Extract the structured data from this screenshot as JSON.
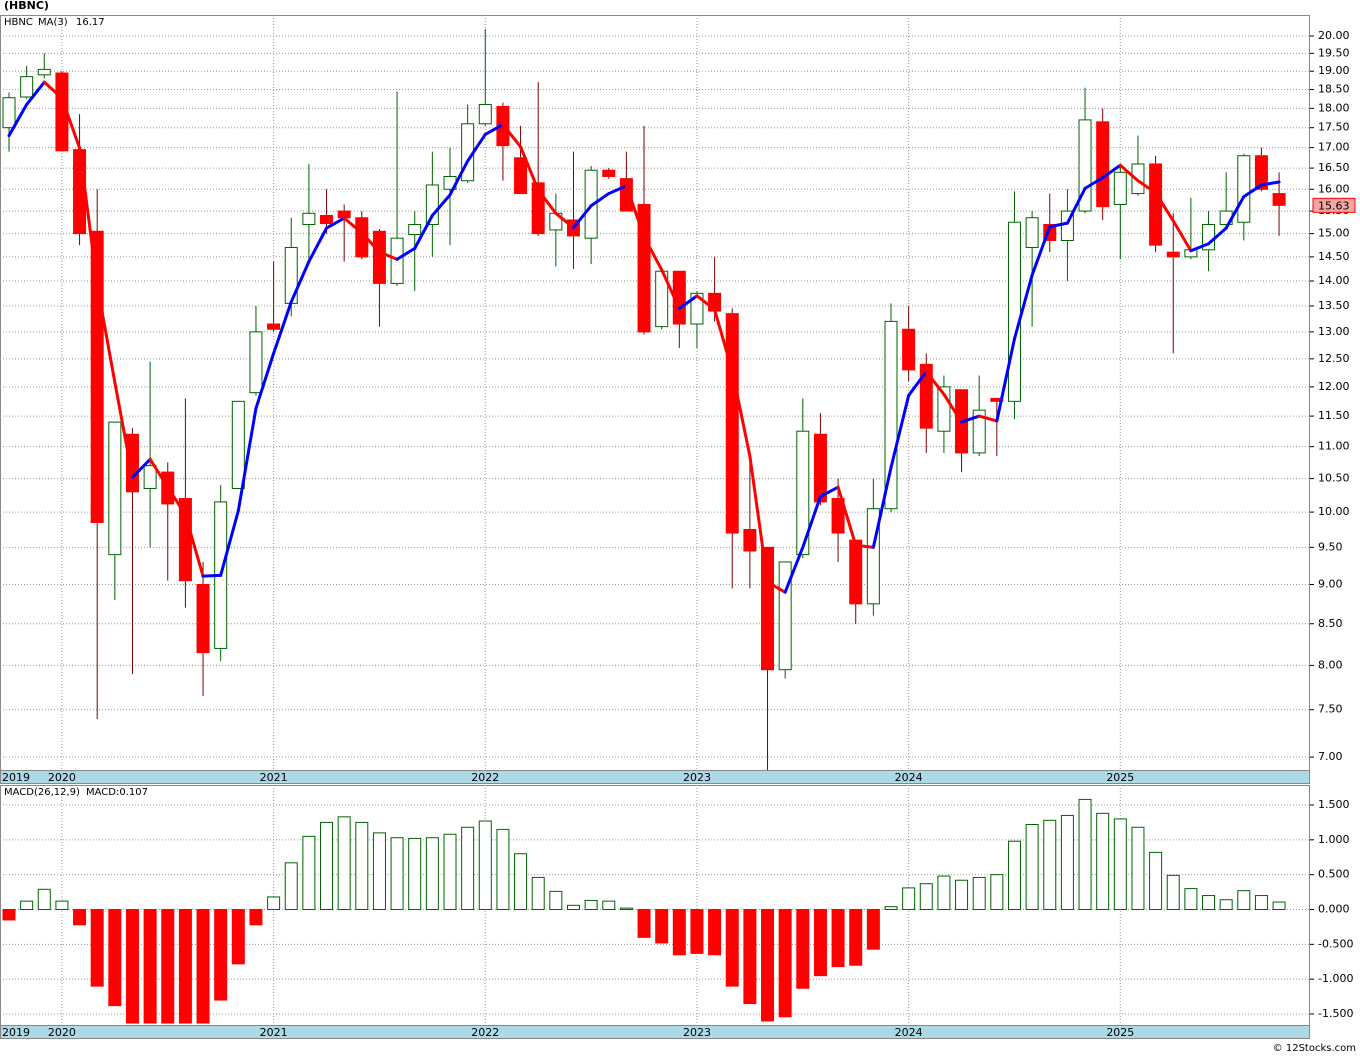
{
  "chart_data": [
    {
      "type": "candlestick",
      "title": "(HBNC)",
      "symbol": "HBNC",
      "categories": [
        "2019",
        null,
        null,
        "2020",
        null,
        null,
        null,
        null,
        null,
        null,
        null,
        null,
        null,
        null,
        null,
        "2021",
        null,
        null,
        null,
        null,
        null,
        null,
        null,
        null,
        null,
        null,
        null,
        "2022",
        null,
        null,
        null,
        null,
        null,
        null,
        null,
        null,
        null,
        null,
        null,
        "2023",
        null,
        null,
        null,
        null,
        null,
        null,
        null,
        null,
        null,
        null,
        null,
        "2024",
        null,
        null,
        null,
        null,
        null,
        null,
        null,
        null,
        null,
        null,
        null,
        "2025",
        null,
        null,
        null,
        null,
        null,
        null,
        null,
        null,
        null
      ],
      "open": [
        17.5,
        18.3,
        18.9,
        18.95,
        16.95,
        15.05,
        9.4,
        11.2,
        10.35,
        10.6,
        10.2,
        9.0,
        8.2,
        10.35,
        11.9,
        13.15,
        13.55,
        15.2,
        15.4,
        15.5,
        15.35,
        15.05,
        13.95,
        14.98,
        15.2,
        16.0,
        16.2,
        17.6,
        18.05,
        16.75,
        16.15,
        15.08,
        15.3,
        14.9,
        16.45,
        16.25,
        15.65,
        13.1,
        14.2,
        13.15,
        13.75,
        13.35,
        9.75,
        9.5,
        7.95,
        9.4,
        11.2,
        10.2,
        9.6,
        8.75,
        10.05,
        13.05,
        12.4,
        11.25,
        11.95,
        10.9,
        11.8,
        11.75,
        14.7,
        15.2,
        14.85,
        15.5,
        17.65,
        15.65,
        15.9,
        16.6,
        14.6,
        14.5,
        14.65,
        15.2,
        15.25,
        16.8,
        15.9
      ],
      "high": [
        18.42,
        19.15,
        19.5,
        19.0,
        17.85,
        16.0,
        11.4,
        11.3,
        12.45,
        10.75,
        11.8,
        9.3,
        10.4,
        11.75,
        13.5,
        14.4,
        15.35,
        16.6,
        16.0,
        15.65,
        15.5,
        15.1,
        18.45,
        15.5,
        16.9,
        17.0,
        18.1,
        20.2,
        18.15,
        17.55,
        18.7,
        15.9,
        16.9,
        16.55,
        16.5,
        16.9,
        17.55,
        14.2,
        14.2,
        13.8,
        14.5,
        13.45,
        10.75,
        9.5,
        9.3,
        11.8,
        11.55,
        10.5,
        9.6,
        10.5,
        13.55,
        13.5,
        12.6,
        12.2,
        11.95,
        12.2,
        11.8,
        15.95,
        15.5,
        15.9,
        16.0,
        18.55,
        18.0,
        16.6,
        17.3,
        16.8,
        15.45,
        15.8,
        15.5,
        16.4,
        16.85,
        17.0,
        16.4
      ],
      "low": [
        16.9,
        18.25,
        18.8,
        16.9,
        14.75,
        7.4,
        8.8,
        7.9,
        9.5,
        9.05,
        8.7,
        7.65,
        8.05,
        10.35,
        11.85,
        13.0,
        13.3,
        14.4,
        15.0,
        14.4,
        14.45,
        13.1,
        13.9,
        13.8,
        14.5,
        14.75,
        16.15,
        17.55,
        16.2,
        15.9,
        14.95,
        14.3,
        14.25,
        14.35,
        16.25,
        15.5,
        12.95,
        13.05,
        12.7,
        12.7,
        13.2,
        8.95,
        8.95,
        6.87,
        7.85,
        9.35,
        10.1,
        9.3,
        8.5,
        8.6,
        10.0,
        12.1,
        10.9,
        10.9,
        10.6,
        10.85,
        10.85,
        11.45,
        13.1,
        14.6,
        14.0,
        15.45,
        15.3,
        14.45,
        15.85,
        14.6,
        12.6,
        14.45,
        14.2,
        15.15,
        14.85,
        15.95,
        14.95
      ],
      "close": [
        18.28,
        18.85,
        19.05,
        16.92,
        15.0,
        9.85,
        11.4,
        10.3,
        10.7,
        10.12,
        9.05,
        8.15,
        10.15,
        11.75,
        13.0,
        13.05,
        14.7,
        15.45,
        15.22,
        15.35,
        14.5,
        13.95,
        14.9,
        15.2,
        16.1,
        16.3,
        17.6,
        18.1,
        17.05,
        15.9,
        15.0,
        15.45,
        14.95,
        16.45,
        16.3,
        15.5,
        13.0,
        14.2,
        13.15,
        13.75,
        13.4,
        9.7,
        9.45,
        7.95,
        9.3,
        11.25,
        10.15,
        9.7,
        8.75,
        10.05,
        13.2,
        12.3,
        11.3,
        12.0,
        10.9,
        11.6,
        11.75,
        15.25,
        15.35,
        14.85,
        15.5,
        17.7,
        15.6,
        16.4,
        16.6,
        14.75,
        14.5,
        14.65,
        15.2,
        15.5,
        16.8,
        16.0,
        15.63
      ],
      "up_color": "#006400",
      "down_color": "#ff0000",
      "log": true,
      "ylim": [
        6.87,
        20.62
      ],
      "yticks": [
        {
          "value": 7,
          "label": "7.00"
        },
        {
          "value": 7.5,
          "label": "7.50"
        },
        {
          "value": 8,
          "label": "8.00"
        },
        {
          "value": 8.5,
          "label": "8.50"
        },
        {
          "value": 9,
          "label": "9.00"
        },
        {
          "value": 9.5,
          "label": "9.50"
        },
        {
          "value": 10,
          "label": "10.00"
        },
        {
          "value": 10.5,
          "label": "10.50"
        },
        {
          "value": 11,
          "label": "11.00"
        },
        {
          "value": 11.5,
          "label": "11.50"
        },
        {
          "value": 12,
          "label": "12.00"
        },
        {
          "value": 12.5,
          "label": "12.50"
        },
        {
          "value": 13,
          "label": "13.00"
        },
        {
          "value": 13.5,
          "label": "13.50"
        },
        {
          "value": 14,
          "label": "14.00"
        },
        {
          "value": 14.5,
          "label": "14.50"
        },
        {
          "value": 15,
          "label": "15.00"
        },
        {
          "value": 15.5,
          "label": "15.50"
        },
        {
          "value": 16,
          "label": "16.00"
        },
        {
          "value": 16.5,
          "label": "16.50"
        },
        {
          "value": 17,
          "label": "17.00"
        },
        {
          "value": 17.5,
          "label": "17.50"
        },
        {
          "value": 18,
          "label": "18.00"
        },
        {
          "value": 18.5,
          "label": "18.50"
        },
        {
          "value": 19,
          "label": "19.00"
        },
        {
          "value": 19.5,
          "label": "19.50"
        },
        {
          "value": 20,
          "label": "20.00"
        }
      ],
      "grid": true,
      "ma": {
        "name": "MA(3)",
        "current": 16.17,
        "up_color": "#0000ff",
        "down_color": "#ff0000",
        "values": [
          17.3,
          18.1,
          18.7,
          18.27,
          16.99,
          13.92,
          12.08,
          10.52,
          10.8,
          10.37,
          9.96,
          9.11,
          9.12,
          10.02,
          11.63,
          12.6,
          13.58,
          14.4,
          15.12,
          15.34,
          15.02,
          14.6,
          14.45,
          14.68,
          15.4,
          15.87,
          16.67,
          17.33,
          17.58,
          17.02,
          15.98,
          15.45,
          15.13,
          15.62,
          15.9,
          16.08,
          14.93,
          14.23,
          13.45,
          13.7,
          13.43,
          12.28,
          10.85,
          9.03,
          8.9,
          9.5,
          10.23,
          10.37,
          9.53,
          9.5,
          10.67,
          11.85,
          12.27,
          11.87,
          11.4,
          11.5,
          11.42,
          12.87,
          14.12,
          15.15,
          15.23,
          16.02,
          16.27,
          16.57,
          16.2,
          15.92,
          15.28,
          14.63,
          14.78,
          15.12,
          15.83,
          16.1,
          16.17
        ]
      },
      "last_price": 15.63,
      "last_price_fill": "#f4a6a6",
      "last_price_stroke": "#ff0000",
      "strip_color": "#add8e6"
    },
    {
      "type": "bar",
      "title": "MACD(26,12,9)",
      "current": 0.107,
      "current_label": "MACD:0.107",
      "categories": [
        "2019",
        null,
        null,
        "2020",
        null,
        null,
        null,
        null,
        null,
        null,
        null,
        null,
        null,
        null,
        null,
        "2021",
        null,
        null,
        null,
        null,
        null,
        null,
        null,
        null,
        null,
        null,
        null,
        "2022",
        null,
        null,
        null,
        null,
        null,
        null,
        null,
        null,
        null,
        null,
        null,
        "2023",
        null,
        null,
        null,
        null,
        null,
        null,
        null,
        null,
        null,
        null,
        null,
        "2024",
        null,
        null,
        null,
        null,
        null,
        null,
        null,
        null,
        null,
        null,
        null,
        "2025",
        null,
        null,
        null,
        null,
        null,
        null,
        null,
        null,
        null
      ],
      "values": [
        -0.15,
        0.12,
        0.29,
        0.12,
        -0.22,
        -1.1,
        -1.38,
        -1.63,
        -1.63,
        -1.63,
        -1.63,
        -1.63,
        -1.3,
        -0.78,
        -0.22,
        0.18,
        0.67,
        1.05,
        1.25,
        1.33,
        1.25,
        1.1,
        1.03,
        1.02,
        1.03,
        1.08,
        1.18,
        1.27,
        1.15,
        0.8,
        0.46,
        0.26,
        0.06,
        0.13,
        0.12,
        0.02,
        -0.4,
        -0.48,
        -0.65,
        -0.63,
        -0.65,
        -1.1,
        -1.35,
        -1.6,
        -1.54,
        -1.13,
        -0.95,
        -0.82,
        -0.8,
        -0.57,
        0.04,
        0.31,
        0.37,
        0.48,
        0.42,
        0.46,
        0.5,
        0.98,
        1.22,
        1.28,
        1.35,
        1.58,
        1.38,
        1.3,
        1.18,
        0.82,
        0.49,
        0.3,
        0.2,
        0.14,
        0.27,
        0.2,
        0.107
      ],
      "pos_color": "#006400",
      "neg_color": "#ff0000",
      "ylim": [
        -1.658,
        1.787
      ],
      "yticks": [
        {
          "value": -1.5,
          "label": "-1.500"
        },
        {
          "value": -1,
          "label": "-1.000"
        },
        {
          "value": -0.5,
          "label": "-0.500"
        },
        {
          "value": 0,
          "label": "0.000"
        },
        {
          "value": 0.5,
          "label": "0.500"
        },
        {
          "value": 1,
          "label": "1.000"
        },
        {
          "value": 1.5,
          "label": "1.500"
        }
      ],
      "grid": true,
      "strip_color": "#add8e6"
    }
  ],
  "footer": "© 12Stocks.com"
}
